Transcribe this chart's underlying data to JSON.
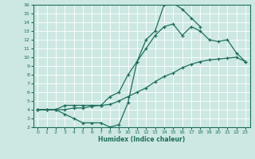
{
  "xlabel": "Humidex (Indice chaleur)",
  "bg_color": "#cde8e2",
  "grid_color": "#b0d8d0",
  "line_color": "#1e6e5e",
  "xlim": [
    -0.5,
    23.5
  ],
  "ylim": [
    2,
    16
  ],
  "yticks": [
    2,
    3,
    4,
    5,
    6,
    7,
    8,
    9,
    10,
    11,
    12,
    13,
    14,
    15,
    16
  ],
  "xticks": [
    0,
    1,
    2,
    3,
    4,
    5,
    6,
    7,
    8,
    9,
    10,
    11,
    12,
    13,
    14,
    15,
    16,
    17,
    18,
    19,
    20,
    21,
    22,
    23
  ],
  "line1_x": [
    0,
    1,
    2,
    3,
    4,
    5,
    6,
    7,
    8,
    9,
    10,
    11,
    12,
    13,
    14,
    15,
    16,
    17,
    18,
    19,
    20,
    21,
    22,
    23
  ],
  "line1_y": [
    4.0,
    4.0,
    4.0,
    4.0,
    4.2,
    4.2,
    4.4,
    4.5,
    4.6,
    5.0,
    5.5,
    6.0,
    6.5,
    7.2,
    7.8,
    8.2,
    8.8,
    9.2,
    9.5,
    9.7,
    9.8,
    9.9,
    10.0,
    9.5
  ],
  "line2_x": [
    0,
    1,
    2,
    3,
    4,
    5,
    6,
    7,
    8,
    9,
    10,
    11,
    12,
    13,
    14,
    15,
    16,
    17,
    18
  ],
  "line2_y": [
    4.0,
    4.0,
    4.0,
    3.5,
    3.0,
    2.5,
    2.5,
    2.5,
    2.0,
    2.3,
    4.8,
    9.5,
    12.0,
    13.0,
    16.0,
    16.2,
    15.5,
    14.5,
    13.5
  ],
  "line3_x": [
    0,
    1,
    2,
    3,
    4,
    5,
    6,
    7,
    8,
    9,
    10,
    11,
    12,
    13,
    14,
    15,
    16,
    17,
    18,
    19,
    20,
    21,
    22,
    23
  ],
  "line3_y": [
    4.0,
    4.0,
    4.0,
    4.5,
    4.5,
    4.5,
    4.5,
    4.5,
    5.5,
    6.0,
    8.0,
    9.5,
    11.0,
    12.5,
    13.5,
    13.8,
    12.5,
    13.5,
    13.0,
    12.0,
    11.8,
    12.0,
    10.5,
    9.5
  ]
}
